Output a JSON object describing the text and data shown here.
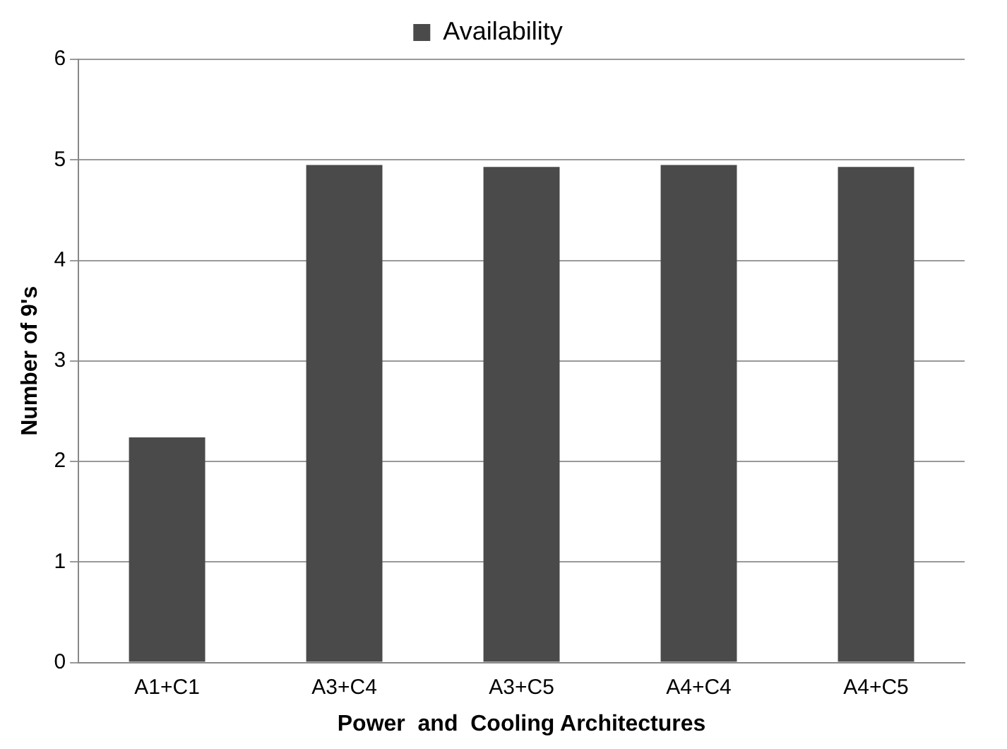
{
  "chart_data": {
    "type": "bar",
    "xlabel": "Power  and  Cooling Architectures",
    "ylabel": "Number of 9's",
    "categories": [
      "A1+C1",
      "A3+C4",
      "A3+C5",
      "A4+C4",
      "A4+C5"
    ],
    "series": [
      {
        "name": "Availability",
        "color": "#4a4a4a",
        "values": [
          2.24,
          4.95,
          4.93,
          4.95,
          4.93
        ]
      }
    ],
    "ylim": [
      0,
      6
    ],
    "yticks": [
      0,
      1,
      2,
      3,
      4,
      5,
      6
    ],
    "grid": "y",
    "legend": "top"
  }
}
